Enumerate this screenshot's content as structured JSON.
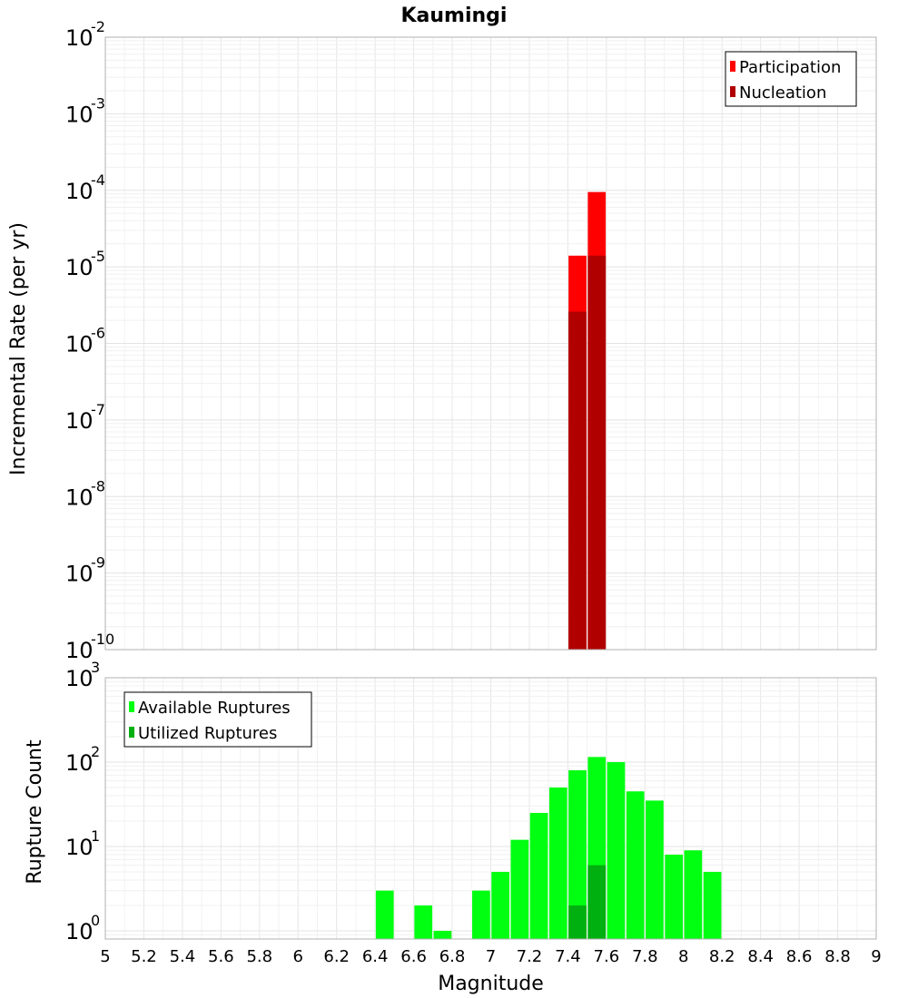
{
  "chart_data": [
    {
      "type": "bar",
      "title": "Kaumingi",
      "xlabel": "",
      "ylabel": "Incremental Rate (per yr)",
      "yscale": "log",
      "ylim": [
        1e-10,
        0.01
      ],
      "xlim": [
        5,
        9
      ],
      "bin_width": 0.1,
      "legend_position": "top-right",
      "series": [
        {
          "name": "Participation",
          "color": "#ff0000",
          "x": [
            7.45,
            7.55
          ],
          "values": [
            1.4e-05,
            9.5e-05
          ]
        },
        {
          "name": "Nucleation",
          "color": "#b00000",
          "x": [
            7.45,
            7.55
          ],
          "values": [
            2.6e-06,
            1.4e-05
          ]
        }
      ]
    },
    {
      "type": "bar",
      "title": "",
      "xlabel": "Magnitude",
      "ylabel": "Rupture Count",
      "yscale": "log",
      "ylim": [
        0.8,
        1000
      ],
      "xlim": [
        5,
        9
      ],
      "bin_width": 0.1,
      "legend_position": "top-left",
      "x_ticks": [
        "5",
        "5.2",
        "5.4",
        "5.6",
        "5.8",
        "6",
        "6.2",
        "6.4",
        "6.6",
        "6.8",
        "7",
        "7.2",
        "7.4",
        "7.6",
        "7.8",
        "8",
        "8.2",
        "8.4",
        "8.6",
        "8.8",
        "9"
      ],
      "series": [
        {
          "name": "Available Ruptures",
          "color": "#00ff11",
          "x": [
            6.45,
            6.65,
            6.75,
            6.95,
            7.05,
            7.15,
            7.25,
            7.35,
            7.45,
            7.55,
            7.65,
            7.75,
            7.85,
            7.95,
            8.05,
            8.15
          ],
          "values": [
            3,
            2,
            1,
            3,
            5,
            12,
            25,
            50,
            80,
            115,
            100,
            45,
            35,
            8,
            9,
            5
          ]
        },
        {
          "name": "Utilized Ruptures",
          "color": "#00b011",
          "x": [
            7.45,
            7.55
          ],
          "values": [
            2,
            6
          ]
        }
      ]
    }
  ],
  "top_y_ticks": [
    {
      "base": "10",
      "exp": "-2"
    },
    {
      "base": "10",
      "exp": "-3"
    },
    {
      "base": "10",
      "exp": "-4"
    },
    {
      "base": "10",
      "exp": "-5"
    },
    {
      "base": "10",
      "exp": "-6"
    },
    {
      "base": "10",
      "exp": "-7"
    },
    {
      "base": "10",
      "exp": "-8"
    },
    {
      "base": "10",
      "exp": "-9"
    },
    {
      "base": "10",
      "exp": "-10"
    }
  ],
  "bottom_y_ticks": [
    {
      "base": "10",
      "exp": "3"
    },
    {
      "base": "10",
      "exp": "2"
    },
    {
      "base": "10",
      "exp": "1"
    },
    {
      "base": "10",
      "exp": "0"
    }
  ]
}
